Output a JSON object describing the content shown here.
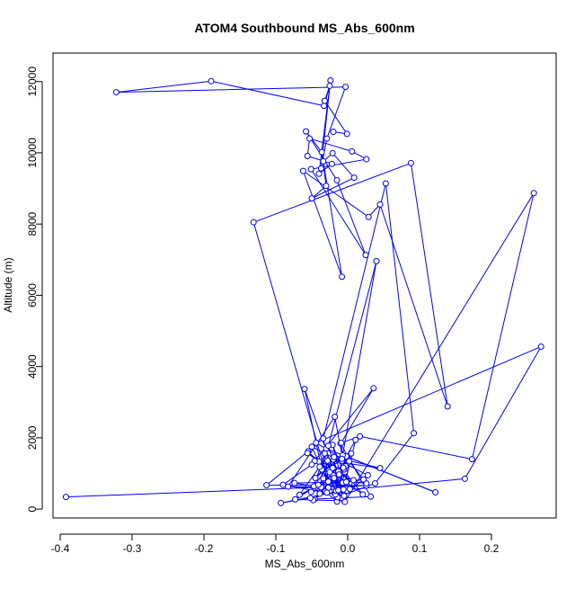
{
  "chart_data": {
    "type": "scatter",
    "style": "points-and-lines",
    "title": "ATOM4 Southbound MS_Abs_600nm",
    "xlabel": "MS_Abs_600nm",
    "ylabel": "Altitude (m)",
    "xlim": [
      -0.41,
      0.29
    ],
    "ylim": [
      -250,
      12800
    ],
    "x_ticks": [
      -0.4,
      -0.3,
      -0.2,
      -0.1,
      0.0,
      0.1,
      0.2
    ],
    "x_tick_labels": [
      "-0.4",
      "-0.3",
      "-0.2",
      "-0.1",
      "0.0",
      "0.1",
      "0.2"
    ],
    "y_ticks": [
      0,
      2000,
      4000,
      6000,
      8000,
      10000,
      12000
    ],
    "y_tick_labels": [
      "0",
      "2000",
      "4000",
      "6000",
      "8000",
      "10000",
      "12000"
    ],
    "grid": false,
    "legend": "none",
    "series_color": "#0000FF",
    "series": [
      {
        "x": [
          -0.392,
          0.026,
          -0.113,
          -0.055,
          -0.001,
          -0.04,
          -0.008,
          -0.036,
          -0.06,
          -0.005,
          -0.073,
          -0.02,
          -0.003,
          -0.01,
          0.032,
          -0.046,
          -0.013,
          -0.027,
          -0.051,
          -0.037,
          -0.083,
          -0.018,
          -0.001,
          -0.021,
          -0.007,
          -0.002,
          0.122,
          -0.03,
          -0.047,
          -0.02,
          -0.006,
          0.011,
          -0.019,
          -0.067,
          -0.039,
          -0.008,
          -0.026,
          -0.005,
          0.028,
          -0.05,
          -0.015,
          -0.031,
          -0.048,
          0.002,
          0.026,
          -0.034,
          -0.004,
          0.021,
          -0.056,
          -0.021,
          -0.012,
          0.008,
          0.003,
          -0.093,
          -0.052,
          -0.029,
          -0.005,
          -0.046,
          0.036,
          -0.009,
          0.017,
          0.173,
          0.259,
          -0.004,
          -0.027,
          0.04,
          -0.007,
          -0.045,
          -0.019,
          -0.014,
          0.038,
          0.092,
          0.053,
          -0.034,
          -0.017,
          -0.09,
          -0.05,
          0.005,
          -0.016,
          0.163,
          0.269,
          -0.044,
          -0.008,
          0.045,
          -0.028,
          -0.013,
          -0.074,
          -0.002,
          0.022,
          -0.041,
          -0.025,
          -0.006,
          -0.039,
          -0.032,
          -0.027,
          -0.131,
          0.088,
          0.139,
          0.045,
          0.029,
          -0.062,
          -0.008,
          -0.034,
          -0.021,
          0.009,
          -0.05,
          -0.03,
          -0.036,
          -0.058,
          -0.015,
          0.025,
          -0.051,
          0.026,
          0.006,
          -0.053,
          -0.056,
          -0.022,
          -0.04,
          -0.024,
          -0.037,
          -0.029,
          -0.003,
          -0.322,
          -0.19,
          -0.033,
          -0.025,
          -0.032,
          -0.001,
          -0.02
        ],
        "y": [
          340,
          660,
          670,
          1620,
          510,
          1330,
          1350,
          1110,
          3370,
          230,
          270,
          950,
          1200,
          1840,
          350,
          280,
          1060,
          600,
          480,
          610,
          630,
          2590,
          780,
          1800,
          740,
          1480,
          470,
          1700,
          640,
          1390,
          550,
          1940,
          870,
          400,
          1190,
          310,
          1080,
          370,
          950,
          1750,
          210,
          490,
          250,
          1340,
          720,
          860,
          1040,
          410,
          1570,
          1150,
          970,
          810,
          560,
          170,
          310,
          460,
          1110,
          1350,
          3390,
          1860,
          2040,
          1400,
          8870,
          200,
          1780,
          6960,
          1510,
          870,
          1460,
          330,
          720,
          2130,
          9140,
          1980,
          410,
          680,
          1250,
          1560,
          510,
          850,
          4560,
          1860,
          1410,
          1150,
          1360,
          530,
          730,
          760,
          830,
          680,
          1030,
          1160,
          430,
          1560,
          770,
          8050,
          9710,
          2880,
          8550,
          8200,
          9490,
          6520,
          9760,
          9990,
          9300,
          8720,
          9070,
          10020,
          10600,
          9230,
          7130,
          9540,
          9820,
          10040,
          10400,
          9910,
          9690,
          9410,
          12030,
          9560,
          10400,
          11850,
          11700,
          12010,
          11320,
          11880,
          11460,
          10530,
          10590
        ]
      }
    ]
  }
}
